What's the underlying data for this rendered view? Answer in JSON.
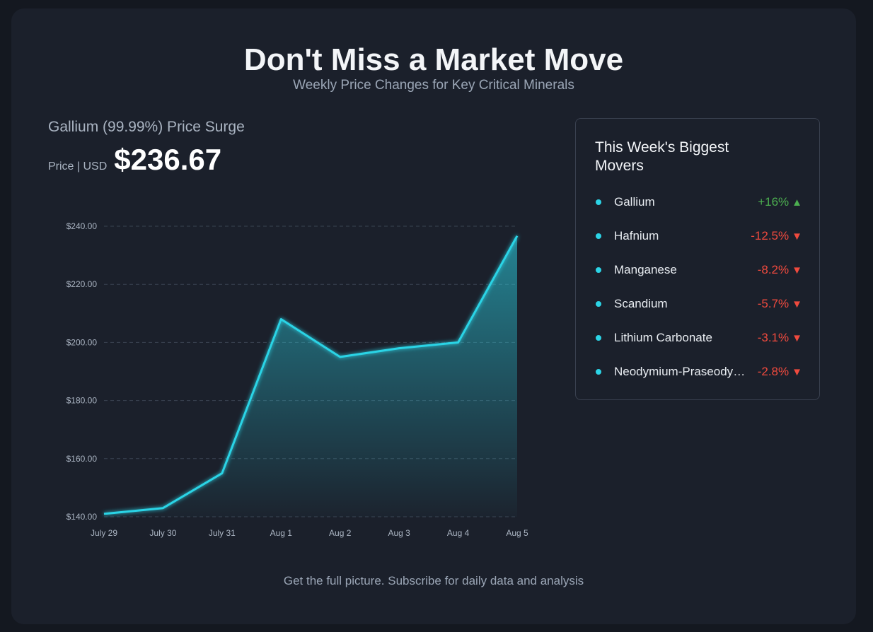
{
  "header": {
    "title": "Don't Miss a Market Move",
    "subtitle": "Weekly Price Changes for Key Critical Minerals"
  },
  "chart_panel": {
    "heading": "Gallium (99.99%) Price Surge",
    "price_label": "Price | USD",
    "price_value": "$236.67"
  },
  "chart_data": {
    "type": "area",
    "categories": [
      "July 29",
      "July 30",
      "July 31",
      "Aug 1",
      "Aug 2",
      "Aug 3",
      "Aug 4",
      "Aug 5"
    ],
    "values": [
      141,
      143,
      155,
      208,
      195,
      198,
      200,
      236.67
    ],
    "yticks": [
      "$140.00",
      "$160.00",
      "$180.00",
      "$200.00",
      "$220.00",
      "$240.00"
    ],
    "ylim": [
      140,
      240
    ],
    "grid": true,
    "line_color": "#2cd4e6"
  },
  "movers": {
    "title": "This Week's Biggest Movers",
    "items": [
      {
        "name": "Gallium",
        "change": "+16%",
        "direction": "up"
      },
      {
        "name": "Hafnium",
        "change": "-12.5%",
        "direction": "down"
      },
      {
        "name": "Manganese",
        "change": "-8.2%",
        "direction": "down"
      },
      {
        "name": "Scandium",
        "change": "-5.7%",
        "direction": "down"
      },
      {
        "name": "Lithium Carbonate",
        "change": "-3.1%",
        "direction": "down"
      },
      {
        "name": "Neodymium-Praseodymium",
        "change": "-2.8%",
        "direction": "down"
      }
    ]
  },
  "footer": {
    "text": "Get the full picture. Subscribe for daily data and analysis"
  },
  "colors": {
    "accent": "#2cd4e6",
    "up": "#4caf50",
    "down": "#f04a3e"
  }
}
